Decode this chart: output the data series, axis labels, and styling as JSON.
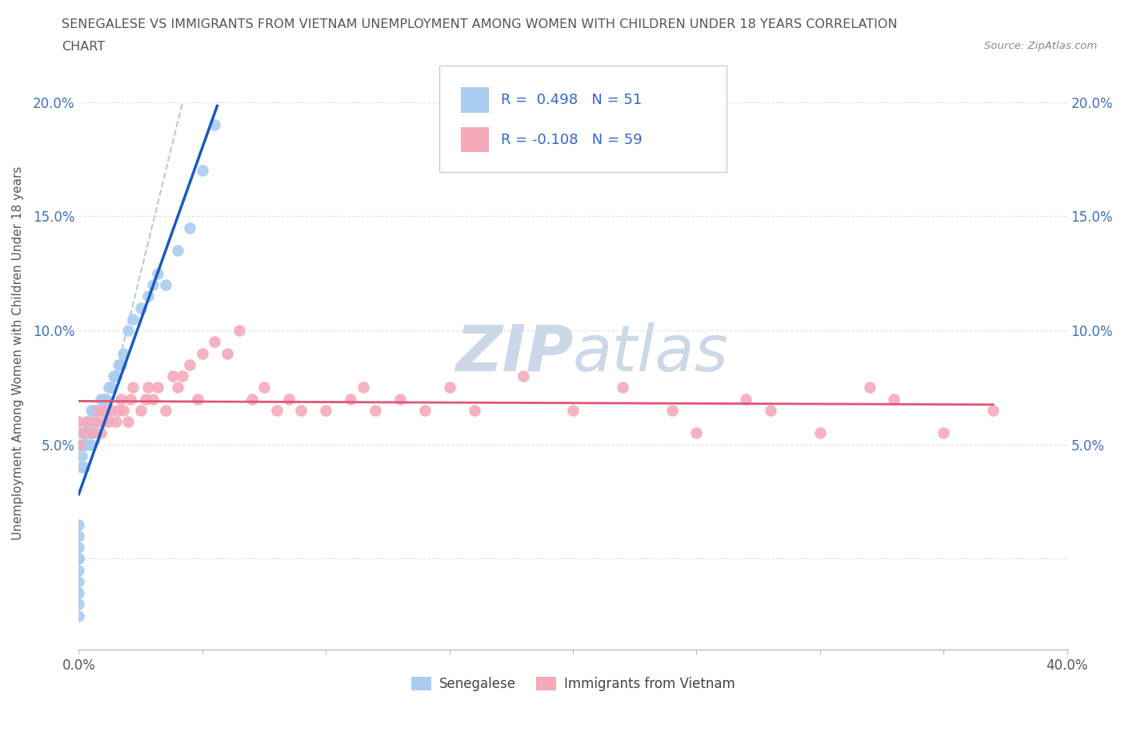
{
  "title_line1": "SENEGALESE VS IMMIGRANTS FROM VIETNAM UNEMPLOYMENT AMONG WOMEN WITH CHILDREN UNDER 18 YEARS CORRELATION",
  "title_line2": "CHART",
  "source_text": "Source: ZipAtlas.com",
  "ylabel": "Unemployment Among Women with Children Under 18 years",
  "xlim": [
    0.0,
    0.4
  ],
  "ylim": [
    -0.04,
    0.22
  ],
  "yaxis_min": 0.0,
  "yaxis_max": 0.2,
  "R_senegalese": 0.498,
  "N_senegalese": 51,
  "R_vietnam": -0.108,
  "N_vietnam": 59,
  "color_senegalese": "#aaccf0",
  "color_vietnam": "#f4aabb",
  "line_color_senegalese": "#1a5abf",
  "line_color_vietnam": "#e05575",
  "dash_color": "#aabbcc",
  "watermark_zip": "ZIP",
  "watermark_atlas": "atlas",
  "watermark_color": "#ccd8e8",
  "background_color": "#ffffff",
  "senegalese_x": [
    0.0,
    0.0,
    0.0,
    0.0,
    0.0,
    0.0,
    0.0,
    0.0,
    0.0,
    0.0,
    0.001,
    0.001,
    0.001,
    0.001,
    0.002,
    0.002,
    0.002,
    0.003,
    0.003,
    0.004,
    0.004,
    0.005,
    0.005,
    0.005,
    0.006,
    0.006,
    0.007,
    0.007,
    0.008,
    0.009,
    0.01,
    0.01,
    0.011,
    0.012,
    0.013,
    0.014,
    0.015,
    0.016,
    0.017,
    0.018,
    0.02,
    0.022,
    0.025,
    0.028,
    0.03,
    0.032,
    0.035,
    0.04,
    0.045,
    0.05,
    0.055
  ],
  "senegalese_y": [
    -0.025,
    -0.02,
    -0.015,
    -0.01,
    -0.005,
    0.0,
    0.0,
    0.005,
    0.01,
    0.015,
    0.04,
    0.045,
    0.05,
    0.055,
    0.04,
    0.05,
    0.055,
    0.05,
    0.055,
    0.05,
    0.06,
    0.05,
    0.055,
    0.065,
    0.055,
    0.065,
    0.06,
    0.065,
    0.065,
    0.07,
    0.065,
    0.07,
    0.07,
    0.075,
    0.075,
    0.08,
    0.08,
    0.085,
    0.085,
    0.09,
    0.1,
    0.105,
    0.11,
    0.115,
    0.12,
    0.125,
    0.12,
    0.135,
    0.145,
    0.17,
    0.19
  ],
  "vietnam_x": [
    0.0,
    0.0,
    0.002,
    0.003,
    0.005,
    0.007,
    0.008,
    0.009,
    0.01,
    0.011,
    0.012,
    0.013,
    0.015,
    0.016,
    0.017,
    0.018,
    0.02,
    0.021,
    0.022,
    0.025,
    0.027,
    0.028,
    0.03,
    0.032,
    0.035,
    0.038,
    0.04,
    0.042,
    0.045,
    0.048,
    0.05,
    0.055,
    0.06,
    0.065,
    0.07,
    0.075,
    0.08,
    0.085,
    0.09,
    0.1,
    0.11,
    0.115,
    0.12,
    0.13,
    0.14,
    0.15,
    0.16,
    0.18,
    0.2,
    0.22,
    0.24,
    0.25,
    0.27,
    0.28,
    0.3,
    0.32,
    0.33,
    0.35,
    0.37
  ],
  "vietnam_y": [
    0.05,
    0.06,
    0.055,
    0.06,
    0.055,
    0.06,
    0.065,
    0.055,
    0.06,
    0.065,
    0.06,
    0.065,
    0.06,
    0.065,
    0.07,
    0.065,
    0.06,
    0.07,
    0.075,
    0.065,
    0.07,
    0.075,
    0.07,
    0.075,
    0.065,
    0.08,
    0.075,
    0.08,
    0.085,
    0.07,
    0.09,
    0.095,
    0.09,
    0.1,
    0.07,
    0.075,
    0.065,
    0.07,
    0.065,
    0.065,
    0.07,
    0.075,
    0.065,
    0.07,
    0.065,
    0.075,
    0.065,
    0.08,
    0.065,
    0.075,
    0.065,
    0.055,
    0.07,
    0.065,
    0.055,
    0.075,
    0.07,
    0.055,
    0.065
  ]
}
